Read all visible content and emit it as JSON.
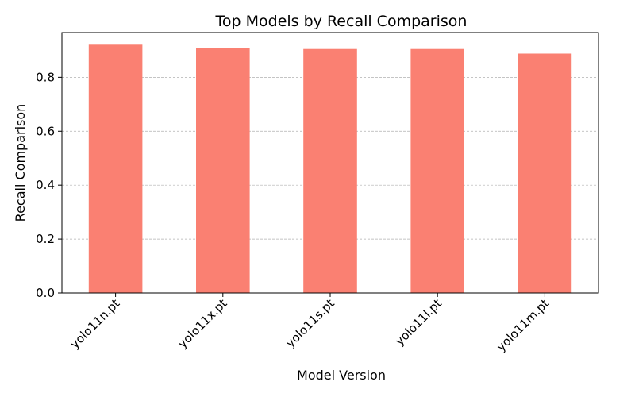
{
  "chart_data": {
    "type": "bar",
    "title": "Top Models by Recall Comparison",
    "xlabel": "Model Version",
    "ylabel": "Recall Comparison",
    "categories": [
      "yolo11n.pt",
      "yolo11x.pt",
      "yolo11s.pt",
      "yolo11l.pt",
      "yolo11m.pt"
    ],
    "values": [
      0.921,
      0.909,
      0.905,
      0.905,
      0.888
    ],
    "ylim": [
      0,
      0.966
    ],
    "yticks": [
      0.0,
      0.2,
      0.4,
      0.6,
      0.8
    ],
    "ytick_labels": [
      "0.0",
      "0.2",
      "0.4",
      "0.6",
      "0.8"
    ],
    "grid": "y-axis dashed",
    "bar_color": "#fa8072"
  }
}
